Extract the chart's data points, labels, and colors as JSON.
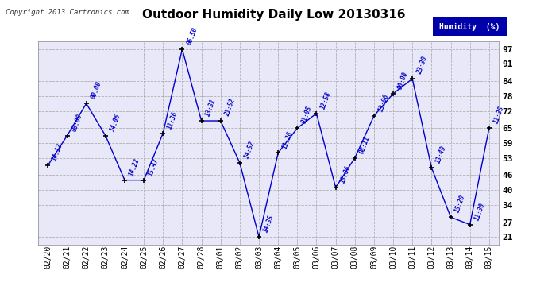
{
  "title": "Outdoor Humidity Daily Low 20130316",
  "copyright": "Copyright 2013 Cartronics.com",
  "legend_label": "Humidity  (%)",
  "x_labels": [
    "02/20",
    "02/21",
    "02/22",
    "02/23",
    "02/24",
    "02/25",
    "02/26",
    "02/27",
    "02/28",
    "03/01",
    "03/02",
    "03/03",
    "03/04",
    "03/05",
    "03/06",
    "03/07",
    "03/08",
    "03/09",
    "03/10",
    "03/11",
    "03/12",
    "03/13",
    "03/14",
    "03/15"
  ],
  "y_values": [
    50,
    62,
    75,
    62,
    44,
    44,
    63,
    97,
    68,
    68,
    51,
    21,
    55,
    65,
    71,
    41,
    53,
    70,
    79,
    85,
    49,
    29,
    26,
    65
  ],
  "time_labels": [
    "14:12",
    "08:00",
    "00:00",
    "14:06",
    "14:22",
    "15:47",
    "11:36",
    "06:50",
    "13:31",
    "21:52",
    "14:52",
    "14:35",
    "11:26",
    "01:05",
    "12:58",
    "13:06",
    "08:11",
    "13:06",
    "00:00",
    "23:30",
    "13:49",
    "15:20",
    "11:30",
    "11:35"
  ],
  "ylim": [
    18,
    100
  ],
  "yticks": [
    21,
    27,
    34,
    40,
    46,
    53,
    59,
    65,
    72,
    78,
    84,
    91,
    97
  ],
  "line_color": "#0000cc",
  "marker_color": "#000000",
  "bg_color": "#ffffff",
  "plot_bg_color": "#e8e8f8",
  "title_color": "#000000",
  "label_color": "#0000cc",
  "grid_color": "#aaaaaa",
  "legend_bg": "#0000aa",
  "legend_fg": "#ffffff",
  "figwidth": 6.9,
  "figheight": 3.75,
  "dpi": 100
}
